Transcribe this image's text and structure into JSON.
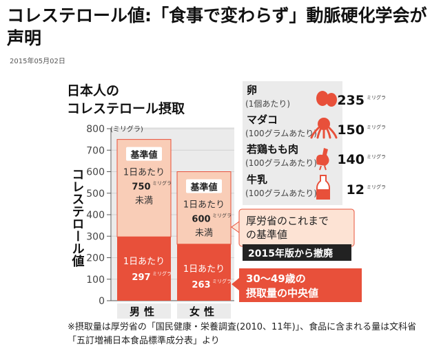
{
  "article": {
    "headline": "コレステロール値:「食事で変わらず」動脈硬化学会が声明",
    "date": "2015年05月02日"
  },
  "colors": {
    "upper_bar": "#f9cdb7",
    "lower_bar": "#e8503a",
    "axis_panel": "#ebebeb",
    "badge_dark": "#222222"
  },
  "chart_data": {
    "type": "bar",
    "title": "日本人の\nコレステロール摂取",
    "ylabel": "コレステロール値",
    "yunit": "(ミリグラ)",
    "yticks": [
      "0",
      "100",
      "200",
      "300",
      "400",
      "500",
      "600",
      "700",
      "800"
    ],
    "ylim": [
      0,
      800
    ],
    "grid": true,
    "categories": [
      "男性",
      "女性"
    ],
    "series": [
      {
        "name": "基準値",
        "values": [
          750,
          600
        ],
        "labels": [
          {
            "title": "基準値",
            "per_day": "1日あたり",
            "amount": "750",
            "unit": "ミリグラ",
            "note": "未満"
          },
          {
            "title": "基準値",
            "per_day": "1日あたり",
            "amount": "600",
            "unit": "ミリグラ",
            "note": "未満"
          }
        ]
      },
      {
        "name": "30〜49歳の摂取量の中央値",
        "values": [
          297,
          263
        ],
        "labels": [
          {
            "per_day": "1日あたり",
            "amount": "297",
            "unit": "ミリグラ"
          },
          {
            "per_day": "1日あたり",
            "amount": "263",
            "unit": "ミリグラ"
          }
        ]
      }
    ],
    "annotations": {
      "standard_note": "厚労省のこれまで\nの基準値",
      "abolished_badge": "2015年版から撤廃",
      "median_note": "30〜49歳の\n摂取量の中央値"
    }
  },
  "foods": [
    {
      "name": "卵",
      "portion": "(1個あたり)",
      "value": "235",
      "unit": "ミリグラ",
      "icon": "egg-icon"
    },
    {
      "name": "マダコ",
      "portion": "(100グラムあたり)",
      "value": "150",
      "unit": "ミリグラ",
      "icon": "octopus-icon"
    },
    {
      "name": "若鶏もも肉",
      "portion": "(100グラムあたり)",
      "value": "140",
      "unit": "ミリグラ",
      "icon": "rooster-icon"
    },
    {
      "name": "牛乳",
      "portion": "(100グラムあたり)",
      "value": "12",
      "unit": "ミリグラ",
      "icon": "milk-bottle-icon"
    }
  ],
  "footnote": "※摂取量は厚労省の「国民健康・栄養調査(2010、11年)」、食品に含まれる量は文科省「五訂増補日本食品標準成分表」より"
}
